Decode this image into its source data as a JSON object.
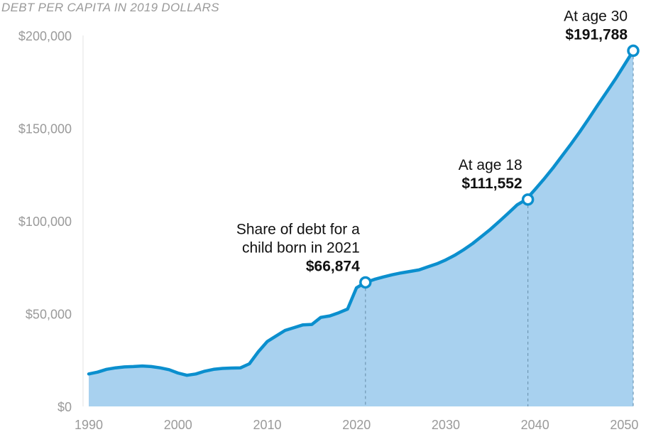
{
  "chart_data": {
    "type": "area",
    "subtitle": "DEBT PER CAPITA IN 2019 DOLLARS",
    "ylim": [
      0,
      200000
    ],
    "xlim": [
      1990,
      2051
    ],
    "y_ticks": [
      {
        "value": 0,
        "label": "$0"
      },
      {
        "value": 50000,
        "label": "$50,000"
      },
      {
        "value": 100000,
        "label": "$100,000"
      },
      {
        "value": 150000,
        "label": "$150,000"
      },
      {
        "value": 200000,
        "label": "$200,000"
      }
    ],
    "x_ticks": [
      {
        "value": 1990,
        "label": "1990"
      },
      {
        "value": 2000,
        "label": "2000"
      },
      {
        "value": 2010,
        "label": "2010"
      },
      {
        "value": 2020,
        "label": "2020"
      },
      {
        "value": 2030,
        "label": "2030"
      },
      {
        "value": 2040,
        "label": "2040"
      },
      {
        "value": 2050,
        "label": "2050"
      }
    ],
    "colors": {
      "line": "#0b8fce",
      "fill": "#a8d1ef",
      "annotation": "#111111",
      "ticks": "#9a9a9a",
      "guide": "#6f97b3"
    },
    "x": [
      1990,
      1991,
      1992,
      1993,
      1994,
      1995,
      1996,
      1997,
      1998,
      1999,
      2000,
      2001,
      2002,
      2003,
      2004,
      2005,
      2006,
      2007,
      2008,
      2009,
      2010,
      2011,
      2012,
      2013,
      2014,
      2015,
      2016,
      2017,
      2018,
      2019,
      2020,
      2021,
      2022,
      2023,
      2024,
      2025,
      2026,
      2027,
      2028,
      2029,
      2030,
      2031,
      2032,
      2033,
      2034,
      2035,
      2036,
      2037,
      2038,
      2039,
      2040,
      2041,
      2042,
      2043,
      2044,
      2045,
      2046,
      2047,
      2048,
      2049,
      2050,
      2051
    ],
    "y": [
      17500,
      18500,
      20000,
      20800,
      21300,
      21500,
      21800,
      21500,
      20800,
      19800,
      18000,
      16800,
      17500,
      19000,
      20000,
      20500,
      20700,
      20800,
      23000,
      29500,
      35000,
      38000,
      41000,
      42500,
      44000,
      44200,
      48000,
      48800,
      50500,
      52500,
      64000,
      66874,
      68500,
      69800,
      71000,
      72000,
      72800,
      73600,
      75300,
      76900,
      79000,
      81500,
      84500,
      87800,
      91600,
      95500,
      99800,
      104200,
      108700,
      111552,
      117000,
      122600,
      128500,
      134900,
      141300,
      148000,
      155000,
      162300,
      169400,
      176500,
      184100,
      191788
    ],
    "annotations": [
      {
        "x": 2021,
        "y": 66874,
        "lines": [
          "Share of debt for a",
          "child born in 2021"
        ],
        "value": "$66,874"
      },
      {
        "x": 2039.2,
        "y": 111552,
        "lines": [
          "At age 18"
        ],
        "value": "$111,552"
      },
      {
        "x": 2051,
        "y": 191788,
        "lines": [
          "At age 30"
        ],
        "value": "$191,788"
      }
    ]
  }
}
